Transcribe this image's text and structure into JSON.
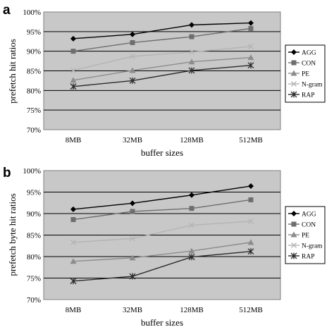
{
  "chart_data": [
    {
      "panel": "a",
      "type": "line",
      "categories": [
        "8MB",
        "32MB",
        "128MB",
        "512MB"
      ],
      "xlabel": "buffer sizes",
      "ylabel": "prefetch hit ratios",
      "ylim": [
        70,
        100
      ],
      "yticks": [
        "70%",
        "75%",
        "80%",
        "85%",
        "90%",
        "95%",
        "100%"
      ],
      "yunit": "%",
      "grid": "horizontal",
      "legend_position": "right",
      "series": [
        {
          "name": "AGG",
          "marker": "diamond",
          "color": "#000000",
          "values": [
            93.2,
            94.3,
            96.7,
            97.2
          ]
        },
        {
          "name": "CON",
          "marker": "square",
          "color": "#6e6e6e",
          "values": [
            90.0,
            92.2,
            93.7,
            95.8
          ]
        },
        {
          "name": "PE",
          "marker": "triangle",
          "color": "#8c8c8c",
          "values": [
            82.6,
            85.1,
            87.3,
            88.4
          ]
        },
        {
          "name": "N-gram",
          "marker": "x",
          "color": "#b4b4b4",
          "values": [
            85.1,
            88.7,
            89.8,
            91.2
          ]
        },
        {
          "name": "RAP",
          "marker": "star",
          "color": "#2b2b2b",
          "values": [
            81.0,
            82.5,
            85.1,
            86.4
          ]
        }
      ]
    },
    {
      "panel": "b",
      "type": "line",
      "categories": [
        "8MB",
        "32MB",
        "128MB",
        "512MB"
      ],
      "xlabel": "buffer sizes",
      "ylabel": "prefetch byte hit ratios",
      "ylim": [
        70,
        100
      ],
      "yticks": [
        "70%",
        "75%",
        "80%",
        "85%",
        "90%",
        "95%",
        "100%"
      ],
      "yunit": "%",
      "grid": "horizontal",
      "legend_position": "right",
      "series": [
        {
          "name": "AGG",
          "marker": "diamond",
          "color": "#000000",
          "values": [
            91.0,
            92.4,
            94.3,
            96.4
          ]
        },
        {
          "name": "CON",
          "marker": "square",
          "color": "#6e6e6e",
          "values": [
            88.6,
            90.5,
            91.2,
            93.2
          ]
        },
        {
          "name": "PE",
          "marker": "triangle",
          "color": "#8c8c8c",
          "values": [
            78.9,
            79.7,
            81.3,
            83.3
          ]
        },
        {
          "name": "N-gram",
          "marker": "x",
          "color": "#b4b4b4",
          "values": [
            83.3,
            84.2,
            87.3,
            88.2
          ]
        },
        {
          "name": "RAP",
          "marker": "star",
          "color": "#2b2b2b",
          "values": [
            74.3,
            75.4,
            79.9,
            81.2
          ]
        }
      ]
    }
  ]
}
